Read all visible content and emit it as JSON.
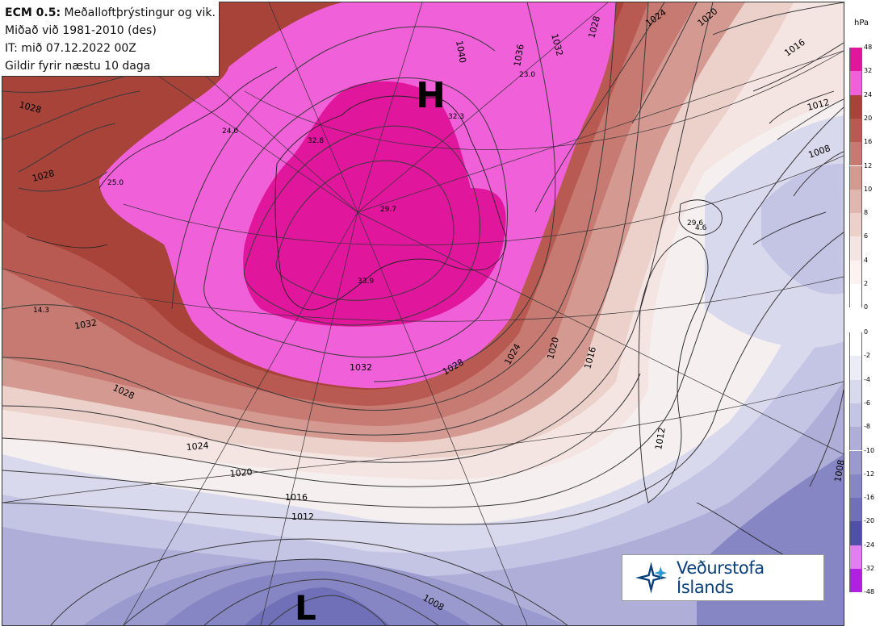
{
  "info": {
    "model": "ECM 0.5:",
    "title": "Meðalloftþrýstingur og vik.",
    "line2": "Miðað við 1981-2010 (des)",
    "line3": "IT: mið 07.12.2022 00Z",
    "line4": "Gildir fyrir næstu 10 daga"
  },
  "logo": {
    "text": "Veðurstofa Íslands"
  },
  "scale": {
    "unit": "hPa",
    "positive": [
      {
        "label": "48",
        "color": "#e0169d"
      },
      {
        "label": "32",
        "color": "#f060d8"
      },
      {
        "label": "24",
        "color": "#a8433a"
      },
      {
        "label": "20",
        "color": "#b85a52"
      },
      {
        "label": "16",
        "color": "#c67a72"
      },
      {
        "label": "12",
        "color": "#d49a92"
      },
      {
        "label": "10",
        "color": "#e1b6ae"
      },
      {
        "label": "8",
        "color": "#ecd0ca"
      },
      {
        "label": "6",
        "color": "#f5e5e2"
      },
      {
        "label": "4",
        "color": "#fbf2f1"
      },
      {
        "label": "2",
        "color": "#ffffff"
      },
      {
        "label": "0",
        "color": ""
      }
    ],
    "negative": [
      {
        "label": "0",
        "color": "#ffffff"
      },
      {
        "label": "-2",
        "color": "#ececf6"
      },
      {
        "label": "-4",
        "color": "#d9d9ee"
      },
      {
        "label": "-6",
        "color": "#c4c4e4"
      },
      {
        "label": "-8",
        "color": "#aeaed9"
      },
      {
        "label": "-10",
        "color": "#9a9acf"
      },
      {
        "label": "-12",
        "color": "#8686c4"
      },
      {
        "label": "-16",
        "color": "#7070b8"
      },
      {
        "label": "-20",
        "color": "#5050a6"
      },
      {
        "label": "-24",
        "color": "#e080f0"
      },
      {
        "label": "-32",
        "color": "#b020e0"
      },
      {
        "label": "-48",
        "color": ""
      }
    ]
  },
  "pressure_centers": [
    {
      "symbol": "H",
      "kind": "high"
    },
    {
      "symbol": "L",
      "kind": "low"
    }
  ],
  "isobar_labels": [
    "1024",
    "1020",
    "1028",
    "1040",
    "1036",
    "1032",
    "1028",
    "1016",
    "1012",
    "1008",
    "1028",
    "1032",
    "1028",
    "1024",
    "1020",
    "1016",
    "1012",
    "1008",
    "1032",
    "1028",
    "1024",
    "1020",
    "1016",
    "1012",
    "1008",
    "1004",
    "1012",
    "1024",
    "1008"
  ],
  "value_labels": [
    "24.0",
    "25.0",
    "32.8",
    "23.0",
    "32.3",
    "29.7",
    "33.9",
    "14.3",
    "29.6",
    "4.6"
  ]
}
